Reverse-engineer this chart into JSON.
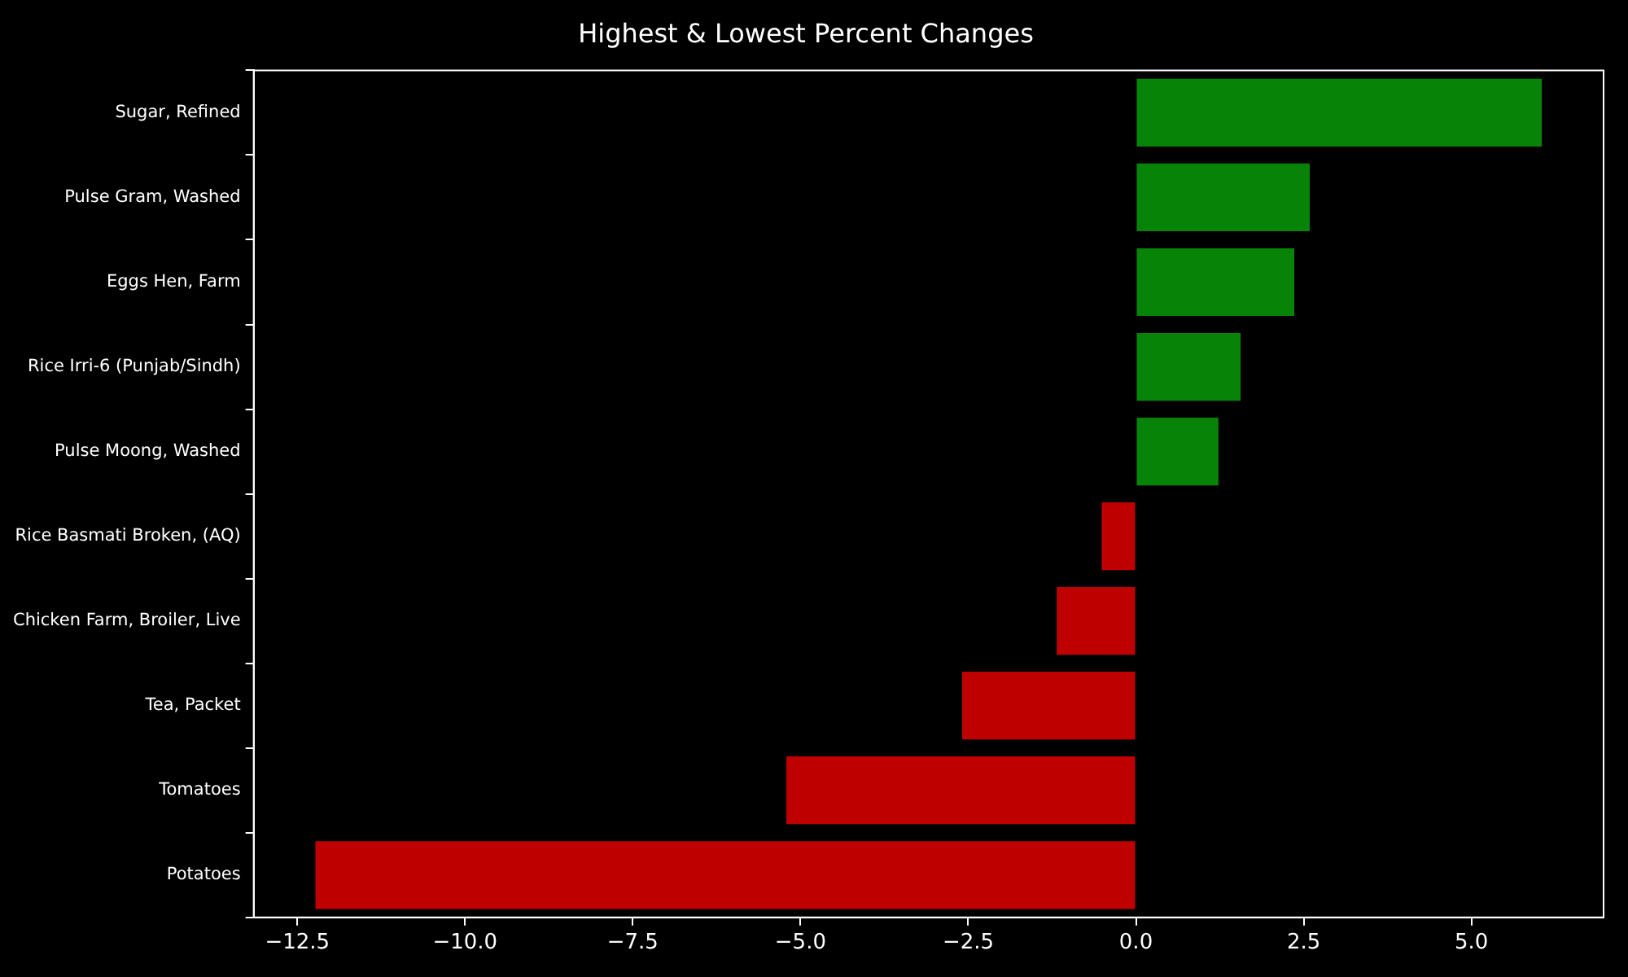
{
  "chart_data": {
    "type": "bar",
    "orientation": "horizontal",
    "title": "Highest & Lowest Percent Changes",
    "categories": [
      "Sugar, Refined",
      "Pulse Gram, Washed",
      "Eggs Hen, Farm",
      "Rice Irri-6 (Punjab/Sindh)",
      "Pulse Moong, Washed",
      "Rice Basmati Broken, (AQ)",
      "Chicken Farm, Broiler, Live",
      "Tea, Packet",
      "Tomatoes",
      "Potatoes"
    ],
    "values": [
      6.05,
      2.59,
      2.36,
      1.56,
      1.23,
      -0.51,
      -1.18,
      -2.59,
      -5.21,
      -12.23
    ],
    "colors": [
      "#078307",
      "#078307",
      "#078307",
      "#078307",
      "#078307",
      "#bf0000",
      "#bf0000",
      "#bf0000",
      "#bf0000",
      "#bf0000"
    ],
    "xlim": [
      -13.15,
      6.97
    ],
    "xticks": [
      {
        "value": -12.5,
        "label": "−12.5"
      },
      {
        "value": -10,
        "label": "−10.0"
      },
      {
        "value": -7.5,
        "label": "−7.5"
      },
      {
        "value": -5,
        "label": "−5.0"
      },
      {
        "value": -2.5,
        "label": "−2.5"
      },
      {
        "value": 0,
        "label": "0.0"
      },
      {
        "value": 2.5,
        "label": "2.5"
      },
      {
        "value": 5,
        "label": "5.0"
      }
    ],
    "grid": false,
    "legend": false
  }
}
